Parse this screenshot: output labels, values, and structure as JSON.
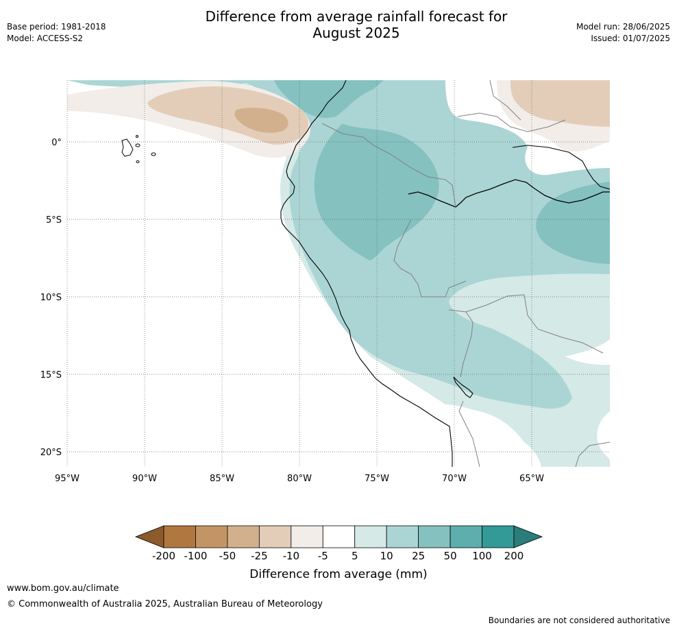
{
  "header": {
    "title_line1": "Difference from average rainfall forecast for",
    "title_line2": "August 2025",
    "base_period": "Base period: 1981-2018",
    "model": "Model: ACCESS-S2",
    "model_run": "Model run: 28/06/2025",
    "issued": "Issued: 01/07/2025"
  },
  "map": {
    "lon_ticks": [
      "95°W",
      "90°W",
      "85°W",
      "80°W",
      "75°W",
      "70°W",
      "65°W"
    ],
    "lat_ticks": [
      "0°",
      "5°S",
      "10°S",
      "15°S",
      "20°S"
    ]
  },
  "legend": {
    "label": "Difference from average (mm)",
    "ticks": [
      "-200",
      "-100",
      "-50",
      "-25",
      "-10",
      "-5",
      "5",
      "10",
      "25",
      "50",
      "100",
      "200"
    ],
    "colors": [
      "#8c5a2b",
      "#b07840",
      "#c39566",
      "#d3b08d",
      "#e3cdb9",
      "#f2ede9",
      "#ffffff",
      "#d5e9e7",
      "#abd5d4",
      "#84c1bf",
      "#5daeac",
      "#339a98",
      "#2a7d7b"
    ]
  },
  "footer": {
    "url": "www.bom.gov.au/climate",
    "copyright": "© Commonwealth of Australia 2025, Australian Bureau of Meteorology",
    "note": "Boundaries are not considered authoritative"
  }
}
